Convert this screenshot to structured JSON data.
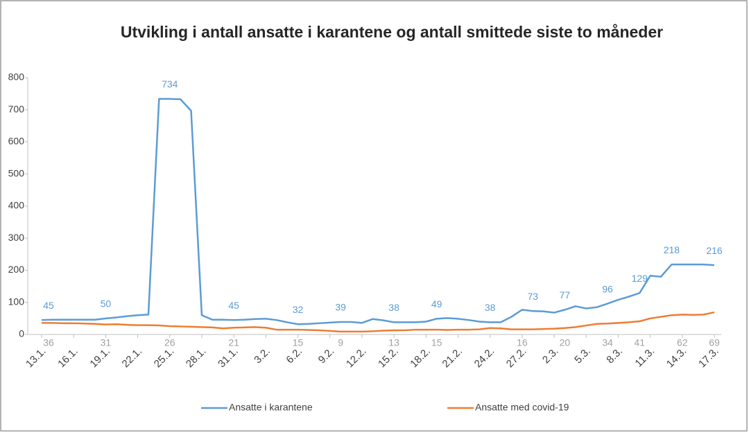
{
  "chart_data": {
    "type": "line",
    "title": "Utvikling i antall ansatte i karantene og antall smittede siste to måneder",
    "categories": [
      "13.1.",
      null,
      null,
      "16.1.",
      null,
      null,
      "19.1.",
      null,
      null,
      "22.1.",
      null,
      null,
      "25.1.",
      null,
      null,
      "28.1.",
      null,
      null,
      "31.1.",
      null,
      null,
      "3.2.",
      null,
      null,
      "6.2.",
      null,
      null,
      "9.2.",
      null,
      null,
      "12.2.",
      null,
      null,
      "15.2.",
      null,
      null,
      "18.2.",
      null,
      null,
      "21.2.",
      null,
      null,
      "24.2.",
      null,
      null,
      "27.2.",
      null,
      null,
      "2.3.",
      null,
      null,
      "5.3.",
      null,
      null,
      "8.3.",
      null,
      null,
      "11.3.",
      null,
      null,
      "14.3.",
      null,
      null,
      "17.3."
    ],
    "series": [
      {
        "name": "Ansatte i karantene",
        "color": "#5b9bd5",
        "values": [
          45,
          46,
          46,
          46,
          46,
          46,
          50,
          53,
          57,
          60,
          62,
          734,
          734,
          733,
          697,
          60,
          46,
          46,
          45,
          46,
          48,
          49,
          45,
          38,
          32,
          33,
          35,
          37,
          39,
          39,
          36,
          48,
          44,
          38,
          38,
          38,
          40,
          49,
          51,
          49,
          45,
          40,
          38,
          38,
          55,
          77,
          73,
          72,
          68,
          77,
          88,
          81,
          85,
          96,
          108,
          118,
          129,
          183,
          180,
          218,
          218,
          218,
          218,
          216
        ],
        "value_labels": [
          "45",
          null,
          null,
          null,
          null,
          null,
          "50",
          null,
          null,
          null,
          null,
          null,
          "734",
          null,
          null,
          null,
          null,
          null,
          "45",
          null,
          null,
          null,
          null,
          null,
          "32",
          null,
          null,
          null,
          "39",
          null,
          null,
          null,
          null,
          "38",
          null,
          null,
          null,
          "49",
          null,
          null,
          null,
          null,
          "38",
          null,
          null,
          null,
          "73",
          null,
          null,
          "77",
          null,
          null,
          null,
          "96",
          null,
          null,
          "129",
          null,
          null,
          "218",
          null,
          null,
          null,
          "216"
        ]
      },
      {
        "name": "Ansatte med covid-19",
        "color": "#ed7d31",
        "values": [
          36,
          36,
          35,
          35,
          34,
          33,
          31,
          32,
          30,
          29,
          29,
          28,
          26,
          25,
          24,
          23,
          22,
          19,
          21,
          22,
          23,
          21,
          15,
          15,
          15,
          14,
          13,
          11,
          9,
          9,
          9,
          10,
          12,
          13,
          13,
          15,
          15,
          15,
          14,
          15,
          15,
          16,
          20,
          19,
          16,
          16,
          16,
          17,
          18,
          20,
          23,
          28,
          33,
          34,
          36,
          38,
          41,
          50,
          55,
          60,
          62,
          61,
          62,
          69
        ],
        "value_labels": [
          "36",
          null,
          null,
          null,
          null,
          null,
          "31",
          null,
          null,
          null,
          null,
          null,
          "26",
          null,
          null,
          null,
          null,
          null,
          "21",
          null,
          null,
          null,
          null,
          null,
          "15",
          null,
          null,
          null,
          "9",
          null,
          null,
          null,
          null,
          "13",
          null,
          null,
          null,
          "15",
          null,
          null,
          null,
          null,
          null,
          null,
          null,
          "16",
          null,
          null,
          null,
          "20",
          null,
          null,
          null,
          "34",
          null,
          null,
          "41",
          null,
          null,
          null,
          "62",
          null,
          null,
          "69"
        ]
      }
    ],
    "ylim": [
      0,
      800
    ],
    "yticks": [
      0,
      100,
      200,
      300,
      400,
      500,
      600,
      700,
      800
    ],
    "grid": false,
    "legend": "bottom"
  }
}
